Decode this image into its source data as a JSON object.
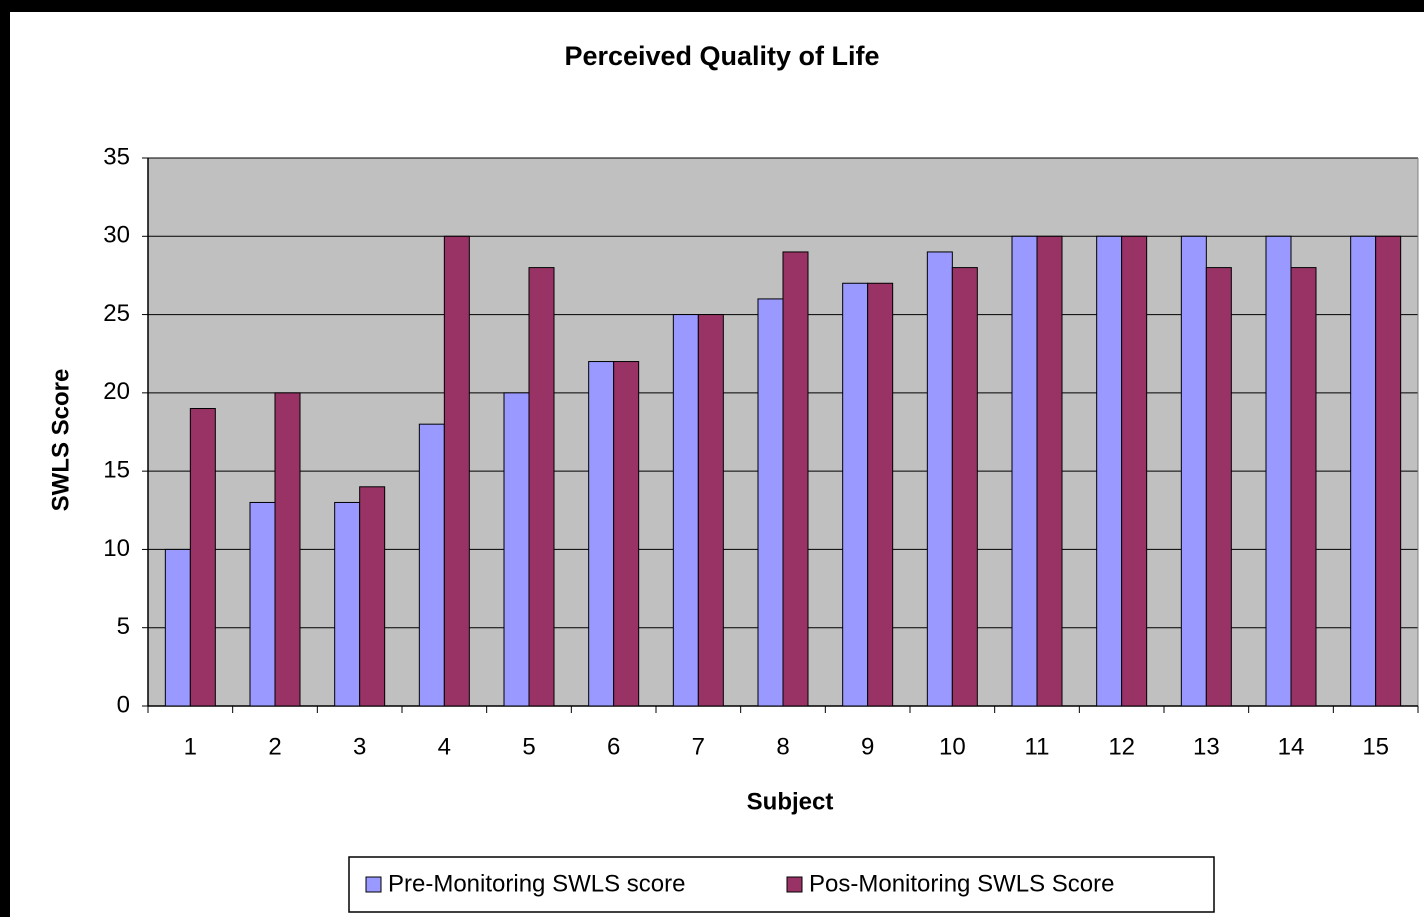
{
  "chart_data": {
    "type": "bar",
    "title": "Perceived Quality of Life",
    "x_label": "Subject",
    "y_label": "SWLS Score",
    "categories": [
      "1",
      "2",
      "3",
      "4",
      "5",
      "6",
      "7",
      "8",
      "9",
      "10",
      "11",
      "12",
      "13",
      "14",
      "15"
    ],
    "series": [
      {
        "name": "Pre-Monitoring SWLS score",
        "color": "#9999ff",
        "values": [
          10,
          13,
          13,
          18,
          20,
          22,
          25,
          26,
          27,
          29,
          30,
          30,
          30,
          30,
          30
        ]
      },
      {
        "name": "Pos-Monitoring SWLS Score",
        "color": "#993366",
        "values": [
          19,
          20,
          14,
          30,
          28,
          22,
          25,
          29,
          27,
          28,
          30,
          30,
          28,
          28,
          30
        ]
      }
    ],
    "ylim": [
      0,
      35
    ],
    "yticks": [
      0,
      5,
      10,
      15,
      20,
      25,
      30,
      35
    ],
    "grid": true,
    "legend": "bottom"
  }
}
